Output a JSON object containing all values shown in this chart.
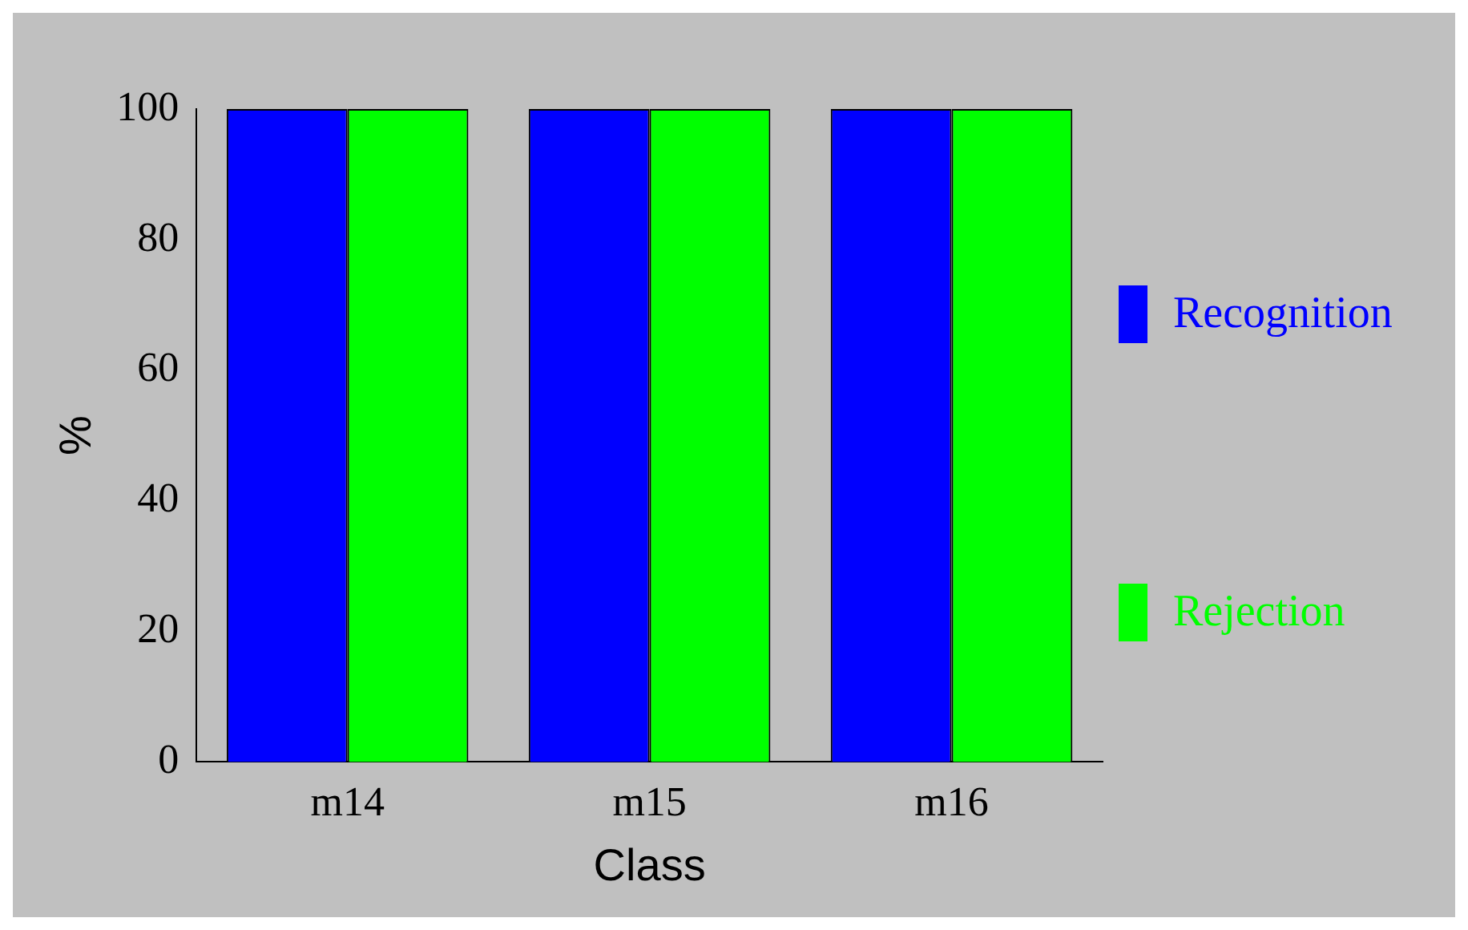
{
  "chart_data": {
    "type": "bar",
    "xlabel": "Class",
    "ylabel": "%",
    "categories": [
      "m14",
      "m15",
      "m16"
    ],
    "series": [
      {
        "name": "Recognition",
        "color": "#0000ff",
        "values": [
          100,
          100,
          100
        ]
      },
      {
        "name": "Rejection",
        "color": "#00ff00",
        "values": [
          100,
          100,
          100
        ]
      }
    ],
    "ylim": [
      0,
      100
    ],
    "yticks": [
      0,
      20,
      40,
      60,
      80,
      100
    ],
    "grid": false,
    "legend": "right"
  }
}
